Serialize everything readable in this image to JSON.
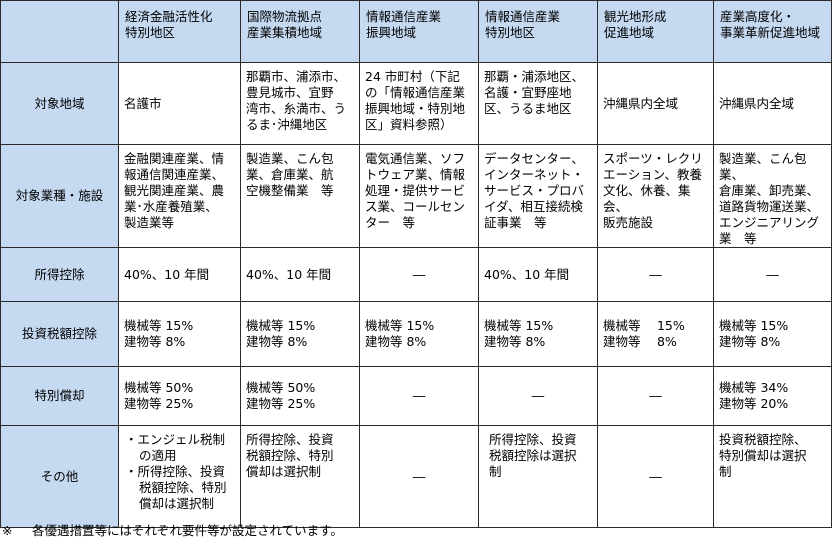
{
  "columns": [
    {
      "line1": "経済金融活性化",
      "line2": "特別地区"
    },
    {
      "line1": "国際物流拠点",
      "line2": "産業集積地域"
    },
    {
      "line1": "情報通信産業",
      "line2": "振興地域"
    },
    {
      "line1": "情報通信産業",
      "line2": "特別地区"
    },
    {
      "line1": "観光地形成",
      "line2": "促進地域"
    },
    {
      "line1": "産業高度化・",
      "line2": "事業革新促進地域"
    }
  ],
  "row_labels": {
    "area": "対象地域",
    "industry": "対象業種・施設",
    "income": "所得控除",
    "investment": "投資税額控除",
    "depreciation": "特別償却",
    "other": "その他"
  },
  "dash": "―",
  "area": {
    "c1": "名護市",
    "c2": "那覇市、浦添市、\n豊見城市、宜野\n湾市、糸満市、う\nるま･沖縄地区",
    "c3": "24 市町村（下記\nの「情報通信産業\n振興地域・特別地\n区」資料参照）",
    "c4": "那覇・浦添地区、\n名護・宜野座地\n区、うるま地区",
    "c5": "沖縄県内全域",
    "c6": "沖縄県内全域"
  },
  "industry": {
    "c1": "金融関連産業、情\n報通信関連産業、\n観光関連産業、農\n業･水産養殖業、\n製造業等",
    "c2": "製造業、こん包\n業、倉庫業、航\n空機整備業　等",
    "c3": "電気通信業、ソフ\nトウェア業、情報\n処理・提供サービ\nス業、コールセン\nター　等",
    "c4": "データセンター、\nインターネット・\nサービス・プロバ\nイダ、相互接続検\n証事業　等",
    "c5": "スポーツ・レクリ\nエーション、教養\n文化、休養、集会、\n販売施設",
    "c6": "製造業、こん包業、\n倉庫業、卸売業、\n道路貨物運送業、\nエンジニアリング\n業　等"
  },
  "income": {
    "c1": "40%、10 年間",
    "c2": "40%、10 年間",
    "c4": "40%、10 年間"
  },
  "investment": {
    "c1": "機械等 15%\n建物等 8%",
    "c2": "機械等 15%\n建物等 8%",
    "c3": "機械等 15%\n建物等 8%",
    "c4": "機械等 15%\n建物等 8%",
    "c5": "機械等　 15%\n建物等　 8%",
    "c6": "機械等 15%\n建物等 8%"
  },
  "depreciation": {
    "c1": "機械等 50%\n建物等 25%",
    "c2": "機械等 50%\n建物等 25%",
    "c6": "機械等 34%\n建物等 20%"
  },
  "other": {
    "c1_item1": "・エンジェル税制の適用",
    "c1_item2": "・所得控除、投資税額控除、特別償却は選択制",
    "c2": "所得控除、投資\n税額控除、特別\n償却は選択制",
    "c4": "所得控除、投資\n税額控除は選択\n制",
    "c6": "投資税額控除、\n特別償却は選択\n制"
  },
  "footnote": {
    "mark": "※",
    "text": "各優遇措置等にはそれぞれ要件等が設定されています。"
  }
}
